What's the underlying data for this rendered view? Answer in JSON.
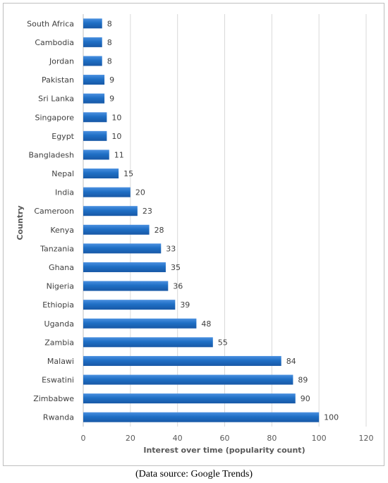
{
  "chart_data": {
    "type": "bar",
    "orientation": "horizontal",
    "categories": [
      "South Africa",
      "Cambodia",
      "Jordan",
      "Pakistan",
      "Sri Lanka",
      "Singapore",
      "Egypt",
      "Bangladesh",
      "Nepal",
      "India",
      "Cameroon",
      "Kenya",
      "Tanzania",
      "Ghana",
      "Nigeria",
      "Ethiopia",
      "Uganda",
      "Zambia",
      "Malawi",
      "Eswatini",
      "Zimbabwe",
      "Rwanda"
    ],
    "values": [
      8,
      8,
      8,
      9,
      9,
      10,
      10,
      11,
      15,
      20,
      23,
      28,
      33,
      35,
      36,
      39,
      48,
      55,
      84,
      89,
      90,
      100
    ],
    "xlabel": "Interest over time (popularity count)",
    "ylabel": "Country",
    "xlim": [
      0,
      120
    ],
    "xticks": [
      0,
      20,
      40,
      60,
      80,
      100,
      120
    ],
    "grid": true,
    "data_labels": true,
    "bar_color": "#1f6fc5",
    "bar_color_light": "#4a90e0",
    "bar_color_dark": "#1858a6",
    "legend": "none"
  },
  "source_note": "(Data source: Google Trends)"
}
